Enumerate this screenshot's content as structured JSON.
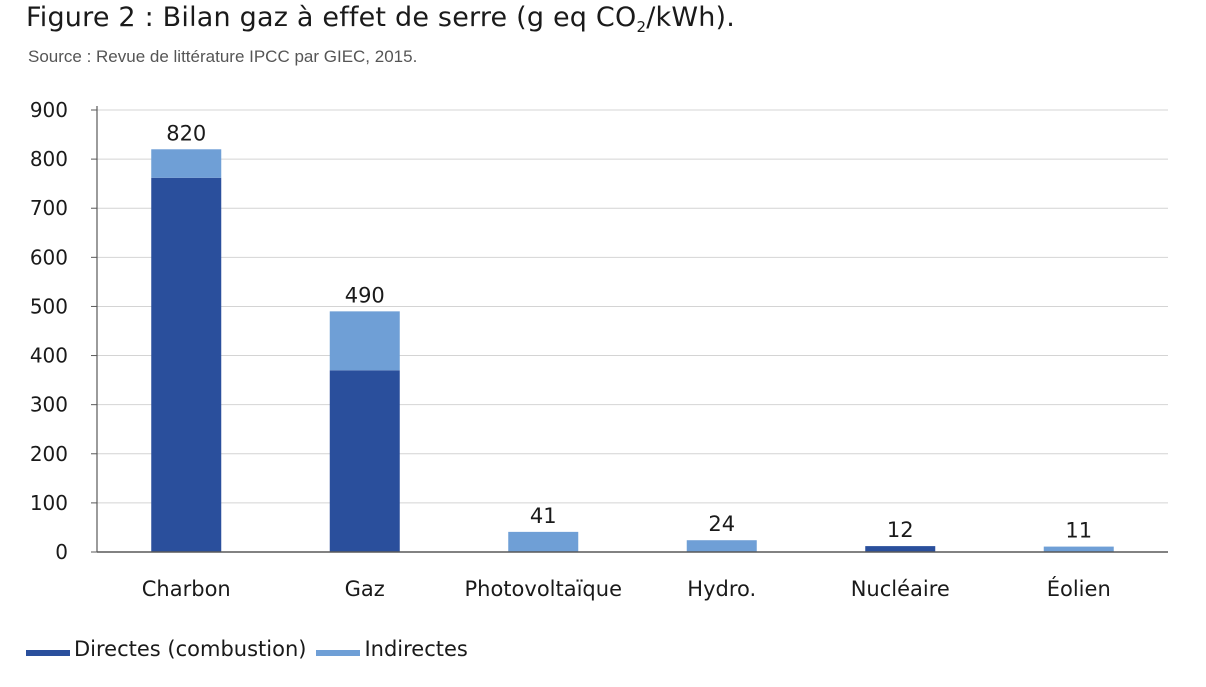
{
  "header": {
    "title_main": "Figure 2 : Bilan gaz à effet de serre (g eq CO",
    "title_sub": "2",
    "title_end": "/kWh).",
    "source": "Source : Revue de littérature IPCC par GIEC, 2015."
  },
  "colors": {
    "directes": "#2a4f9c",
    "indirectes": "#6f9fd6",
    "grid": "#d4d4d4",
    "axis": "#595959"
  },
  "chart_data": {
    "type": "bar",
    "stacked": true,
    "title": "Figure 2 : Bilan gaz à effet de serre (g eq CO2/kWh).",
    "xlabel": "",
    "ylabel": "",
    "ylim": [
      0,
      900
    ],
    "yticks": [
      0,
      100,
      200,
      300,
      400,
      500,
      600,
      700,
      800,
      900
    ],
    "grid": true,
    "legend_position": "bottom-left",
    "categories": [
      "Charbon",
      "Gaz",
      "Photovoltaïque",
      "Hydro.",
      "Nucléaire",
      "Éolien"
    ],
    "series": [
      {
        "name": "Directes (combustion)",
        "values": [
          762,
          370,
          0,
          0,
          12,
          0
        ]
      },
      {
        "name": "Indirectes",
        "values": [
          58,
          120,
          41,
          24,
          0,
          11
        ]
      }
    ],
    "totals": [
      820,
      490,
      41,
      24,
      12,
      11
    ]
  }
}
